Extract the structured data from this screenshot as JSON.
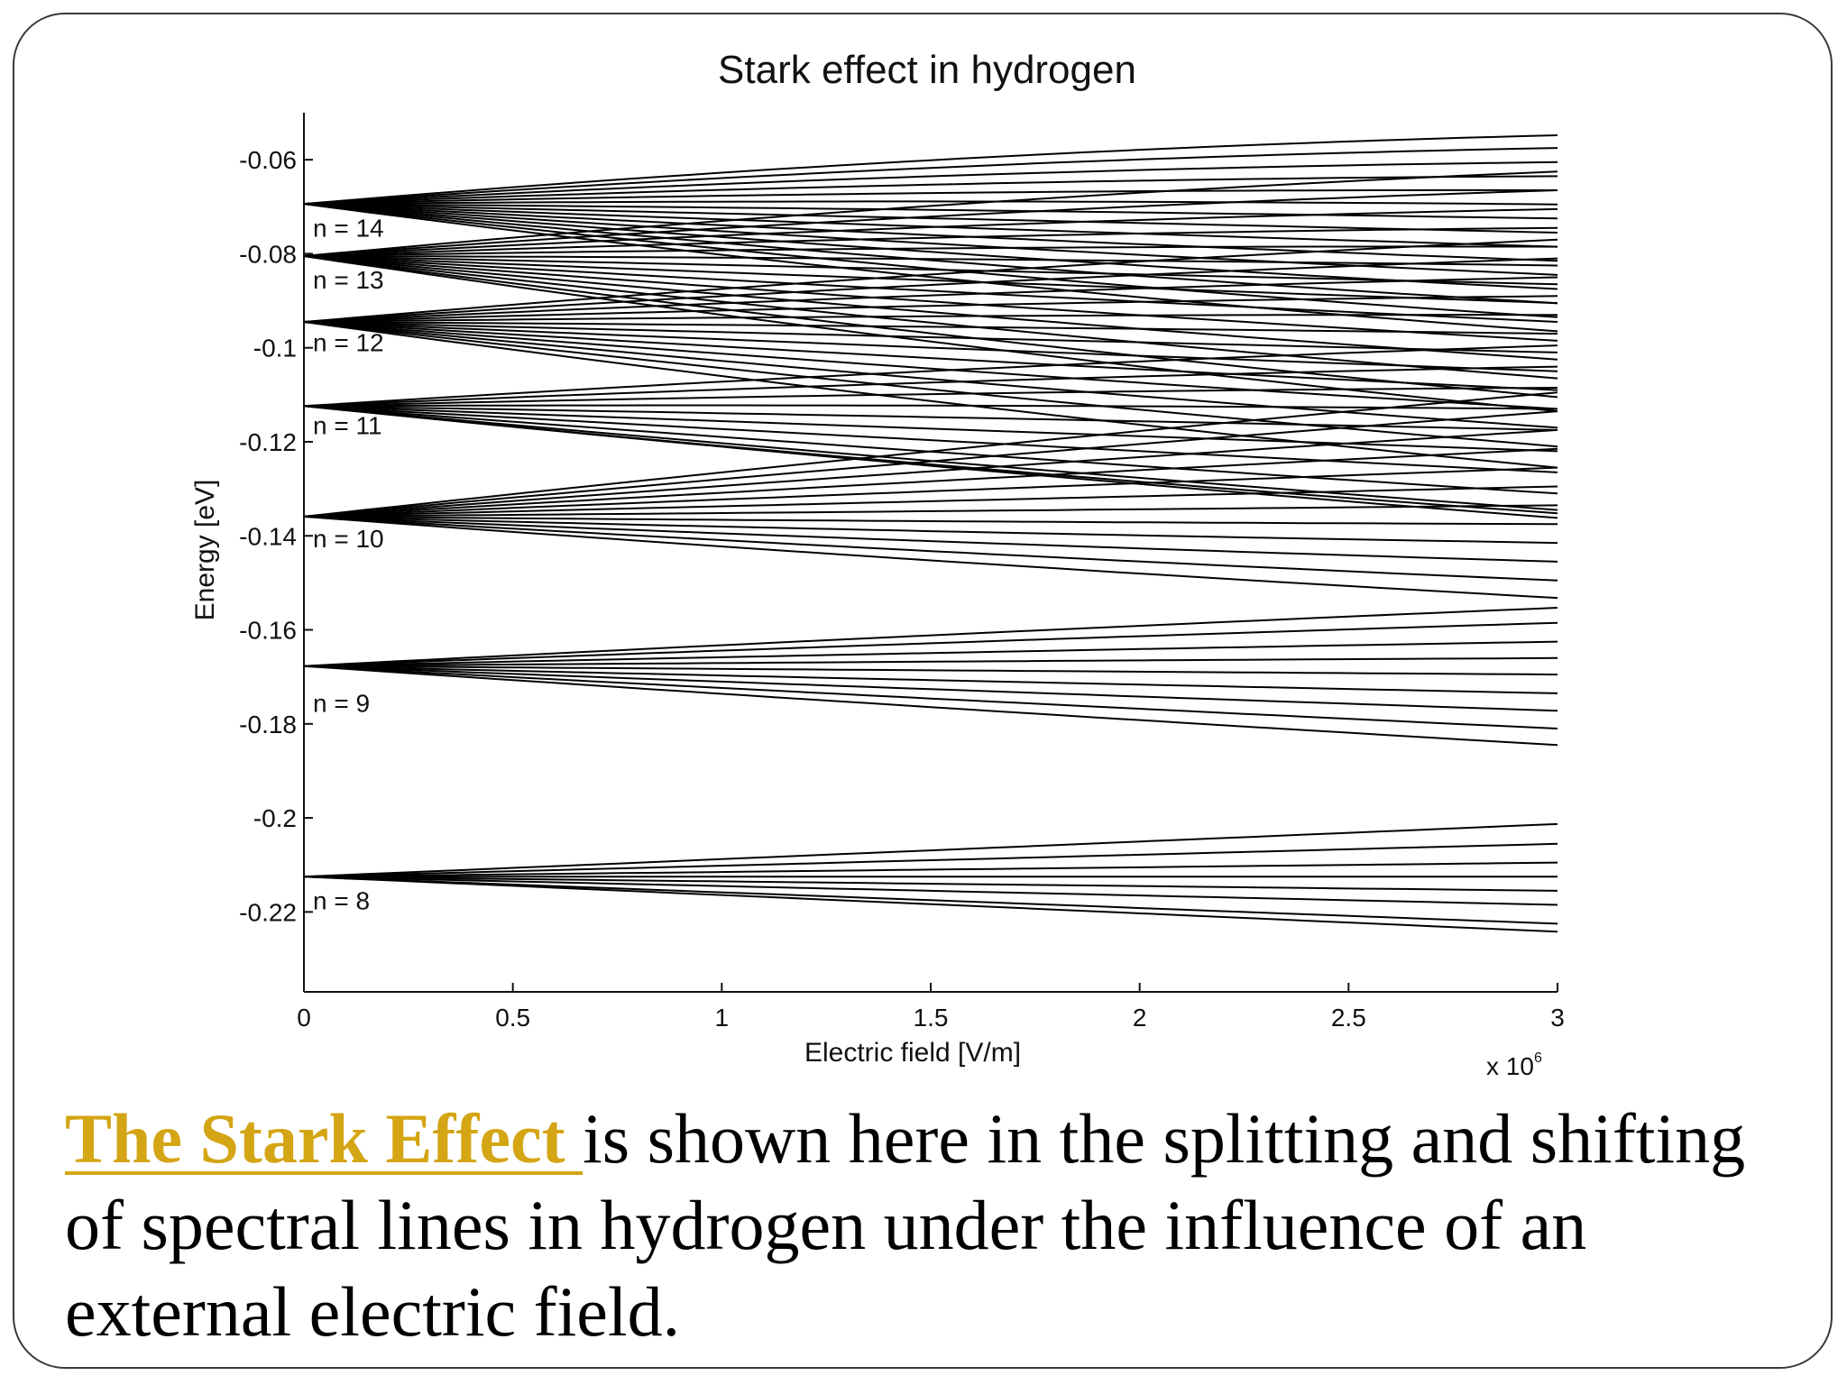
{
  "slide": {
    "caption": {
      "link_text": "The Stark Effect ",
      "rest_text": "is shown here in the splitting and shifting of spectral lines in hydrogen under the influence of an external electric field.",
      "link_color": "#d4a514"
    }
  },
  "chart_data": {
    "type": "line",
    "title": "Stark effect in hydrogen",
    "xlabel": "Electric field [V/m]",
    "ylabel": "Energy [eV]",
    "x_multiplier_label": "x 10",
    "x_multiplier_exponent": "6",
    "xlim": [
      0,
      3
    ],
    "ylim": [
      -0.237,
      -0.05
    ],
    "xticks": [
      0,
      0.5,
      1,
      1.5,
      2,
      2.5,
      3
    ],
    "xtick_labels": [
      "0",
      "0.5",
      "1",
      "1.5",
      "2",
      "2.5",
      "3"
    ],
    "yticks": [
      -0.06,
      -0.08,
      -0.1,
      -0.12,
      -0.14,
      -0.16,
      -0.18,
      -0.2,
      -0.22
    ],
    "ytick_labels": [
      "-0.06",
      "-0.08",
      "-0.1",
      "-0.12",
      "-0.14",
      "-0.16",
      "-0.18",
      "-0.2",
      "-0.22"
    ],
    "grid": false,
    "line_color": "#000000",
    "manifolds": [
      {
        "label": "n = 8",
        "energy_at_zero": -0.2125,
        "label_energy": -0.2175,
        "energy_at_3e6": [
          -0.2013,
          -0.2055,
          -0.2095,
          -0.2125,
          -0.2155,
          -0.2185,
          -0.2225,
          -0.2242
        ]
      },
      {
        "label": "n = 9",
        "energy_at_zero": -0.1677,
        "label_energy": -0.1755,
        "energy_at_3e6": [
          -0.1553,
          -0.1585,
          -0.1625,
          -0.166,
          -0.1695,
          -0.1735,
          -0.1772,
          -0.181,
          -0.1845
        ]
      },
      {
        "label": "n = 10",
        "energy_at_zero": -0.1359,
        "label_energy": -0.1405,
        "energy_at_3e6": [
          -0.1095,
          -0.1135,
          -0.1175,
          -0.1215,
          -0.1255,
          -0.1295,
          -0.1335,
          -0.1375,
          -0.1415,
          -0.1455,
          -0.1495,
          -0.1532
        ]
      },
      {
        "label": "n = 11",
        "energy_at_zero": -0.1124,
        "label_energy": -0.1165,
        "energy_at_3e6": [
          -0.0995,
          -0.104,
          -0.1085,
          -0.113,
          -0.1175,
          -0.122,
          -0.1265,
          -0.131,
          -0.1345,
          -0.1362,
          -0.1352
        ]
      },
      {
        "label": "n = 12",
        "energy_at_zero": -0.0945,
        "label_energy": -0.0988,
        "energy_at_3e6": [
          -0.077,
          -0.081,
          -0.085,
          -0.089,
          -0.093,
          -0.097,
          -0.101,
          -0.105,
          -0.109,
          -0.113,
          -0.117,
          -0.121,
          -0.1255
        ]
      },
      {
        "label": "n = 13",
        "energy_at_zero": -0.0805,
        "label_energy": -0.0855,
        "energy_at_3e6": [
          -0.0625,
          -0.0665,
          -0.0705,
          -0.0745,
          -0.0785,
          -0.0825,
          -0.0865,
          -0.0905,
          -0.0945,
          -0.0985,
          -0.1025,
          -0.1065,
          -0.1105,
          -0.1135
        ]
      },
      {
        "label": "n = 14",
        "energy_at_zero": -0.0694,
        "label_energy": -0.0745,
        "energy_at_3e6": [
          -0.0548,
          -0.0575,
          -0.0605,
          -0.0635,
          -0.0665,
          -0.0695,
          -0.0725,
          -0.0755,
          -0.0785,
          -0.0815,
          -0.0845,
          -0.0875,
          -0.0905,
          -0.0935,
          -0.0965
        ]
      }
    ]
  }
}
